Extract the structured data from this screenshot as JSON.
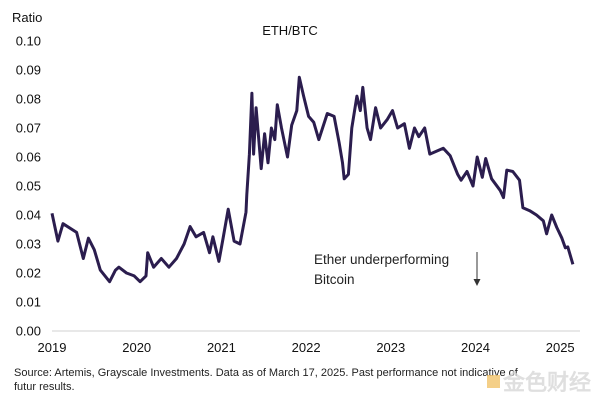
{
  "chart_data": {
    "type": "line",
    "title": "ETH/BTC",
    "ylabel": "Ratio",
    "xlabel": "",
    "ylim": [
      0,
      0.1
    ],
    "xlim": [
      2019,
      2025.25
    ],
    "yticks": [
      "0.00",
      "0.01",
      "0.02",
      "0.03",
      "0.04",
      "0.05",
      "0.06",
      "0.07",
      "0.08",
      "0.09",
      "0.10"
    ],
    "xticks": [
      "2019",
      "2020",
      "2021",
      "2022",
      "2023",
      "2024",
      "2025"
    ],
    "grid": false,
    "line_color": "#2b1d4e",
    "series": [
      {
        "name": "ETH/BTC",
        "x": [
          2019.0,
          2019.07,
          2019.13,
          2019.29,
          2019.37,
          2019.43,
          2019.5,
          2019.57,
          2019.68,
          2019.75,
          2019.79,
          2019.88,
          2019.97,
          2020.04,
          2020.11,
          2020.13,
          2020.2,
          2020.29,
          2020.38,
          2020.47,
          2020.56,
          2020.63,
          2020.7,
          2020.79,
          2020.86,
          2020.9,
          2020.97,
          2021.02,
          2021.08,
          2021.15,
          2021.22,
          2021.29,
          2021.3,
          2021.33,
          2021.36,
          2021.38,
          2021.41,
          2021.47,
          2021.51,
          2021.55,
          2021.59,
          2021.63,
          2021.66,
          2021.71,
          2021.78,
          2021.83,
          2021.89,
          2021.92,
          2021.97,
          2022.03,
          2022.09,
          2022.15,
          2022.25,
          2022.33,
          2022.39,
          2022.43,
          2022.45,
          2022.5,
          2022.54,
          2022.6,
          2022.64,
          2022.67,
          2022.72,
          2022.76,
          2022.82,
          2022.88,
          2022.96,
          2023.02,
          2023.08,
          2023.16,
          2023.22,
          2023.28,
          2023.33,
          2023.4,
          2023.46,
          2023.62,
          2023.7,
          2023.79,
          2023.83,
          2023.9,
          2023.97,
          2024.02,
          2024.08,
          2024.12,
          2024.19,
          2024.29,
          2024.33,
          2024.37,
          2024.44,
          2024.52,
          2024.56,
          2024.64,
          2024.72,
          2024.8,
          2024.84,
          2024.9,
          2024.96,
          2025.02,
          2025.06,
          2025.09,
          2025.15
        ],
        "values": [
          0.0406,
          0.031,
          0.037,
          0.034,
          0.025,
          0.032,
          0.028,
          0.021,
          0.017,
          0.021,
          0.022,
          0.02,
          0.019,
          0.017,
          0.019,
          0.027,
          0.022,
          0.025,
          0.022,
          0.025,
          0.03,
          0.036,
          0.0325,
          0.034,
          0.027,
          0.0325,
          0.024,
          0.032,
          0.042,
          0.031,
          0.03,
          0.041,
          0.047,
          0.061,
          0.082,
          0.061,
          0.077,
          0.056,
          0.068,
          0.058,
          0.07,
          0.066,
          0.078,
          0.07,
          0.06,
          0.071,
          0.076,
          0.0875,
          0.081,
          0.074,
          0.072,
          0.066,
          0.075,
          0.074,
          0.065,
          0.058,
          0.0525,
          0.054,
          0.07,
          0.081,
          0.076,
          0.084,
          0.07,
          0.066,
          0.077,
          0.07,
          0.073,
          0.076,
          0.07,
          0.0715,
          0.063,
          0.07,
          0.067,
          0.07,
          0.061,
          0.063,
          0.0605,
          0.054,
          0.052,
          0.055,
          0.05,
          0.06,
          0.053,
          0.0595,
          0.0525,
          0.0485,
          0.046,
          0.0555,
          0.055,
          0.052,
          0.0425,
          0.0415,
          0.04,
          0.038,
          0.0335,
          0.04,
          0.0357,
          0.032,
          0.0287,
          0.029,
          0.023
        ]
      }
    ],
    "annotations": [
      {
        "text_line1": "Ether underperforming",
        "text_line2": "Bitcoin",
        "arrow": "down"
      }
    ]
  },
  "footer": {
    "source_line1": "Source: Artemis, Grayscale Investments. Data as of March 17, 2025. Past performance not indicative of",
    "source_line2": "futur results.",
    "watermark": "金色财经"
  }
}
